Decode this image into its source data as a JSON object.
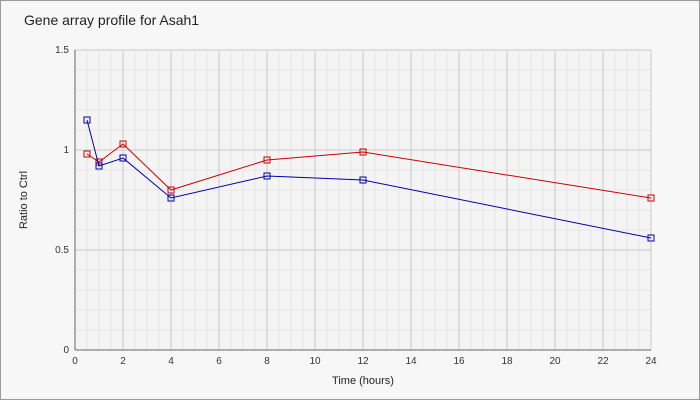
{
  "chart_data": {
    "type": "line",
    "title": "Gene array profile for Asah1",
    "xlabel": "Time (hours)",
    "ylabel": "Ratio to Ctrl",
    "xlim": [
      0,
      24
    ],
    "ylim": [
      0,
      1.5
    ],
    "x_ticks": [
      0,
      2,
      4,
      6,
      8,
      10,
      12,
      14,
      16,
      18,
      20,
      22,
      24
    ],
    "y_ticks": [
      0,
      0.5,
      1,
      1.5
    ],
    "x_tick_labels": [
      "0",
      "2",
      "4",
      "6",
      "8",
      "10",
      "12",
      "14",
      "16",
      "18",
      "20",
      "22",
      "24"
    ],
    "y_tick_labels": [
      "0",
      "0.5",
      "1",
      "1.5"
    ],
    "grid": true,
    "marker": "square",
    "series": [
      {
        "color": "#cc0000",
        "x": [
          0.5,
          1,
          2,
          4,
          8,
          12,
          24
        ],
        "values": [
          0.98,
          0.94,
          1.03,
          0.8,
          0.95,
          0.99,
          0.76
        ]
      },
      {
        "color": "#0000aa",
        "x": [
          0.5,
          1,
          2,
          4,
          8,
          12,
          24
        ],
        "values": [
          1.15,
          0.92,
          0.96,
          0.76,
          0.87,
          0.85,
          0.56
        ]
      }
    ]
  }
}
